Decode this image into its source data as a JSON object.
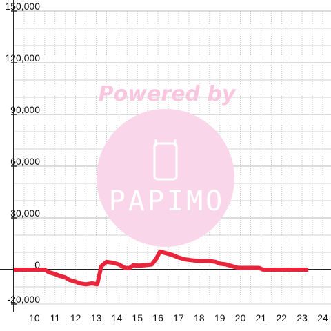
{
  "chart_data": {
    "type": "line",
    "x_ticks": [
      "10",
      "11",
      "12",
      "13",
      "14",
      "15",
      "16",
      "17",
      "18",
      "19",
      "20",
      "21",
      "22",
      "23",
      "24"
    ],
    "y_ticks": [
      "150,000",
      "120,000",
      "90,000",
      "60,000",
      "30,000",
      "0",
      "-20,000"
    ],
    "xlim": [
      9,
      24.4
    ],
    "ylim": [
      -20000,
      150000
    ],
    "grid": true,
    "series": [
      {
        "color": "#e8253a",
        "points": [
          [
            9,
            0
          ],
          [
            10.5,
            0
          ],
          [
            10.7,
            -1500
          ],
          [
            11,
            -2500
          ],
          [
            11.2,
            -3500
          ],
          [
            11.5,
            -4500
          ],
          [
            11.7,
            -6000
          ],
          [
            12,
            -7000
          ],
          [
            12.2,
            -8000
          ],
          [
            12.5,
            -8500
          ],
          [
            12.8,
            -8000
          ],
          [
            13.05,
            -8500
          ],
          [
            13.25,
            2000
          ],
          [
            13.5,
            4500
          ],
          [
            13.8,
            4000
          ],
          [
            14.1,
            3000
          ],
          [
            14.4,
            1000
          ],
          [
            14.6,
            800
          ],
          [
            14.8,
            2500
          ],
          [
            15.1,
            2300
          ],
          [
            15.4,
            2600
          ],
          [
            15.7,
            3000
          ],
          [
            15.9,
            6000
          ],
          [
            16.1,
            10500
          ],
          [
            16.4,
            9500
          ],
          [
            16.7,
            8500
          ],
          [
            17.0,
            7000
          ],
          [
            17.3,
            6000
          ],
          [
            17.6,
            5500
          ],
          [
            18.0,
            5000
          ],
          [
            18.5,
            5000
          ],
          [
            18.8,
            4500
          ],
          [
            19.0,
            3500
          ],
          [
            19.3,
            3000
          ],
          [
            19.6,
            2000
          ],
          [
            19.9,
            1000
          ],
          [
            20.5,
            1000
          ],
          [
            20.9,
            1000
          ],
          [
            21.1,
            0
          ],
          [
            22,
            0
          ],
          [
            23.3,
            0
          ]
        ]
      }
    ]
  },
  "watermark": {
    "text": "Powered by",
    "brand": "PAPIMO",
    "circle_color": "#fad6ea",
    "text_color": "#f9c6e0"
  }
}
